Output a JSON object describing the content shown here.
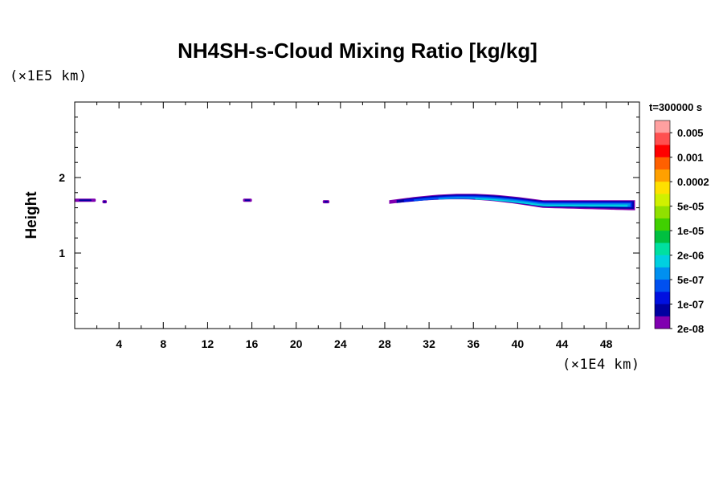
{
  "chart_data": {
    "type": "heatmap",
    "title": "NH4SH-s-Cloud Mixing Ratio [kg/kg]",
    "xlabel": "",
    "ylabel": "Height",
    "x_unit": "(×1E4 km)",
    "y_unit": "(×1E5 km)",
    "time_label": "t=300000 s",
    "xlim": [
      0,
      51
    ],
    "ylim": [
      0,
      3
    ],
    "x_ticks": [
      "4",
      "8",
      "12",
      "16",
      "20",
      "24",
      "28",
      "32",
      "36",
      "40",
      "44",
      "48"
    ],
    "y_ticks": [
      "1",
      "2"
    ],
    "colorbar": {
      "labels": [
        "0.005",
        "0.001",
        "0.0002",
        "5e-05",
        "1e-05",
        "2e-06",
        "5e-07",
        "1e-07",
        "2e-08"
      ],
      "colors": [
        "#ffa0a0",
        "#ff5050",
        "#ff0000",
        "#ff6000",
        "#ffa000",
        "#ffe000",
        "#d0f000",
        "#90e000",
        "#40d000",
        "#00c040",
        "#00e0a0",
        "#00d0e0",
        "#0090f0",
        "#0050f0",
        "#0010e0",
        "#0000a0",
        "#8000b0"
      ]
    },
    "cloud_regions": [
      {
        "x_start": 0.0,
        "x_end": 1.9,
        "height": 1.7
      },
      {
        "x_start": 2.5,
        "x_end": 2.9,
        "height": 1.68
      },
      {
        "x_start": 15.2,
        "x_end": 16.0,
        "height": 1.7
      },
      {
        "x_start": 22.4,
        "x_end": 23.0,
        "height": 1.68
      },
      {
        "x_start": 28.4,
        "x_end": 50.6,
        "height": 1.7
      }
    ]
  }
}
